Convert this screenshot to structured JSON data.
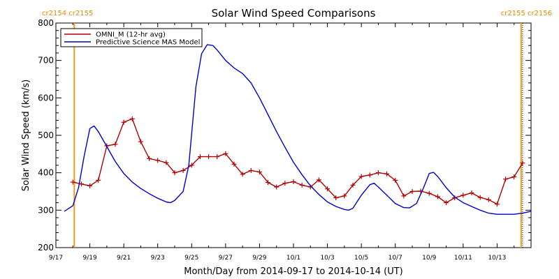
{
  "chart_data": {
    "type": "line",
    "title": "Solar Wind Speed Comparisons",
    "xlabel": "Month/Day from 2014-09-17 to 2014-10-14 (UT)",
    "ylabel": "Solar Wind Speed (km/s)",
    "ylim": [
      200,
      800
    ],
    "xlim": [
      "2014-09-17",
      "2014-10-14"
    ],
    "yticks": [
      "200",
      "300",
      "400",
      "500",
      "600",
      "700",
      "800"
    ],
    "xticks": [
      "9/17",
      "9/19",
      "9/21",
      "9/23",
      "9/25",
      "9/27",
      "9/29",
      "10/1",
      "10/3",
      "10/5",
      "10/7",
      "10/9",
      "10/11",
      "10/13"
    ],
    "legend_position": "top-left",
    "carrington_markers": [
      {
        "label": "cr2154 cr2155",
        "side": "left",
        "date": "2014-09-18T02:00"
      },
      {
        "label": "cr2155 cr2156",
        "side": "right",
        "date": "2014-10-14T10:00"
      }
    ],
    "series": [
      {
        "name": "OMNI_M (12-hr avg)",
        "color": "#b00000",
        "marker": "+",
        "points": [
          [
            "2014-09-18T00:00",
            375
          ],
          [
            "2014-09-18T12:00",
            370
          ],
          [
            "2014-09-19T00:00",
            365
          ],
          [
            "2014-09-19T12:00",
            380
          ],
          [
            "2014-09-20T00:00",
            472
          ],
          [
            "2014-09-20T12:00",
            476
          ],
          [
            "2014-09-21T00:00",
            535
          ],
          [
            "2014-09-21T12:00",
            544
          ],
          [
            "2014-09-22T00:00",
            483
          ],
          [
            "2014-09-22T12:00",
            438
          ],
          [
            "2014-09-23T00:00",
            433
          ],
          [
            "2014-09-23T12:00",
            427
          ],
          [
            "2014-09-24T00:00",
            400
          ],
          [
            "2014-09-24T12:00",
            406
          ],
          [
            "2014-09-25T00:00",
            420
          ],
          [
            "2014-09-25T12:00",
            443
          ],
          [
            "2014-09-26T00:00",
            443
          ],
          [
            "2014-09-26T12:00",
            443
          ],
          [
            "2014-09-27T00:00",
            451
          ],
          [
            "2014-09-27T12:00",
            423
          ],
          [
            "2014-09-28T00:00",
            396
          ],
          [
            "2014-09-28T12:00",
            406
          ],
          [
            "2014-09-29T00:00",
            402
          ],
          [
            "2014-09-29T12:00",
            374
          ],
          [
            "2014-09-30T00:00",
            362
          ],
          [
            "2014-09-30T12:00",
            372
          ],
          [
            "2014-10-01T00:00",
            376
          ],
          [
            "2014-10-01T12:00",
            367
          ],
          [
            "2014-10-02T00:00",
            362
          ],
          [
            "2014-10-02T12:00",
            381
          ],
          [
            "2014-10-03T00:00",
            357
          ],
          [
            "2014-10-03T12:00",
            333
          ],
          [
            "2014-10-04T00:00",
            338
          ],
          [
            "2014-10-04T12:00",
            367
          ],
          [
            "2014-10-05T00:00",
            390
          ],
          [
            "2014-10-05T12:00",
            394
          ],
          [
            "2014-10-06T00:00",
            400
          ],
          [
            "2014-10-06T12:00",
            397
          ],
          [
            "2014-10-07T00:00",
            380
          ],
          [
            "2014-10-07T12:00",
            338
          ],
          [
            "2014-10-08T00:00",
            350
          ],
          [
            "2014-10-08T12:00",
            351
          ],
          [
            "2014-10-09T00:00",
            345
          ],
          [
            "2014-10-09T12:00",
            336
          ],
          [
            "2014-10-10T00:00",
            320
          ],
          [
            "2014-10-10T12:00",
            333
          ],
          [
            "2014-10-11T00:00",
            340
          ],
          [
            "2014-10-11T12:00",
            346
          ],
          [
            "2014-10-12T00:00",
            334
          ],
          [
            "2014-10-12T12:00",
            328
          ],
          [
            "2014-10-13T00:00",
            316
          ],
          [
            "2014-10-13T12:00",
            383
          ],
          [
            "2014-10-14T00:00",
            389
          ],
          [
            "2014-10-14T12:00",
            426
          ]
        ]
      },
      {
        "name": "Predictive Science MAS Model",
        "color": "#0000cc",
        "marker": "none",
        "points": [
          [
            "2014-09-17T12:00",
            297
          ],
          [
            "2014-09-18T00:00",
            312
          ],
          [
            "2014-09-18T08:00",
            360
          ],
          [
            "2014-09-18T16:00",
            445
          ],
          [
            "2014-09-19T00:00",
            518
          ],
          [
            "2014-09-19T06:00",
            525
          ],
          [
            "2014-09-19T12:00",
            510
          ],
          [
            "2014-09-20T00:00",
            470
          ],
          [
            "2014-09-20T12:00",
            430
          ],
          [
            "2014-09-21T00:00",
            398
          ],
          [
            "2014-09-21T12:00",
            375
          ],
          [
            "2014-09-22T00:00",
            358
          ],
          [
            "2014-09-22T12:00",
            344
          ],
          [
            "2014-09-23T00:00",
            332
          ],
          [
            "2014-09-23T12:00",
            322
          ],
          [
            "2014-09-23T18:00",
            320
          ],
          [
            "2014-09-24T00:00",
            326
          ],
          [
            "2014-09-24T12:00",
            350
          ],
          [
            "2014-09-24T20:00",
            420
          ],
          [
            "2014-09-25T06:00",
            630
          ],
          [
            "2014-09-25T14:00",
            718
          ],
          [
            "2014-09-25T22:00",
            742
          ],
          [
            "2014-09-26T06:00",
            740
          ],
          [
            "2014-09-26T12:00",
            728
          ],
          [
            "2014-09-27T00:00",
            700
          ],
          [
            "2014-09-27T12:00",
            680
          ],
          [
            "2014-09-28T00:00",
            665
          ],
          [
            "2014-09-28T12:00",
            640
          ],
          [
            "2014-09-29T00:00",
            600
          ],
          [
            "2014-09-29T12:00",
            555
          ],
          [
            "2014-09-30T00:00",
            510
          ],
          [
            "2014-09-30T12:00",
            468
          ],
          [
            "2014-10-01T00:00",
            428
          ],
          [
            "2014-10-01T12:00",
            395
          ],
          [
            "2014-10-02T00:00",
            365
          ],
          [
            "2014-10-02T12:00",
            342
          ],
          [
            "2014-10-03T00:00",
            322
          ],
          [
            "2014-10-03T12:00",
            310
          ],
          [
            "2014-10-04T00:00",
            302
          ],
          [
            "2014-10-04T06:00",
            300
          ],
          [
            "2014-10-04T12:00",
            305
          ],
          [
            "2014-10-05T00:00",
            340
          ],
          [
            "2014-10-05T12:00",
            368
          ],
          [
            "2014-10-05T18:00",
            372
          ],
          [
            "2014-10-06T00:00",
            362
          ],
          [
            "2014-10-06T12:00",
            340
          ],
          [
            "2014-10-07T00:00",
            318
          ],
          [
            "2014-10-07T12:00",
            307
          ],
          [
            "2014-10-07T20:00",
            306
          ],
          [
            "2014-10-08T06:00",
            318
          ],
          [
            "2014-10-08T16:00",
            360
          ],
          [
            "2014-10-09T00:00",
            398
          ],
          [
            "2014-10-09T06:00",
            401
          ],
          [
            "2014-10-09T12:00",
            390
          ],
          [
            "2014-10-10T00:00",
            360
          ],
          [
            "2014-10-10T12:00",
            335
          ],
          [
            "2014-10-11T00:00",
            320
          ],
          [
            "2014-10-11T12:00",
            310
          ],
          [
            "2014-10-12T00:00",
            300
          ],
          [
            "2014-10-12T12:00",
            292
          ],
          [
            "2014-10-13T00:00",
            289
          ],
          [
            "2014-10-13T12:00",
            289
          ],
          [
            "2014-10-14T00:00",
            289
          ],
          [
            "2014-10-14T12:00",
            292
          ],
          [
            "2014-10-15T00:00",
            297
          ]
        ]
      }
    ]
  }
}
